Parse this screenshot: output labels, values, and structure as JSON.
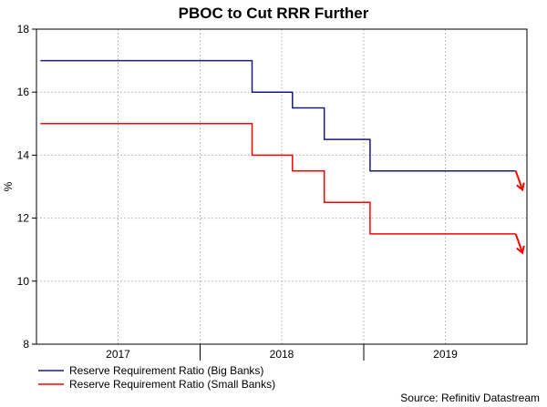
{
  "chart_data": {
    "type": "line",
    "title": "PBOC to Cut RRR Further",
    "ylabel": "%",
    "xlabel": "",
    "ylim": [
      8,
      18
    ],
    "yticks": [
      8,
      10,
      12,
      14,
      16,
      18
    ],
    "x_range": [
      "2016-10-01",
      "2019-09-30"
    ],
    "x_tick_labels": [
      {
        "label": "2017",
        "center": "2017-04-01"
      },
      {
        "label": "2018",
        "center": "2018-04-01"
      },
      {
        "label": "2019",
        "center": "2019-04-01"
      }
    ],
    "x_gridlines": [
      "2017-04-01",
      "2017-10-01",
      "2018-04-01",
      "2018-10-01",
      "2019-04-01"
    ],
    "x_year_boundaries": [
      "2017-10-01",
      "2018-10-01"
    ],
    "grid": true,
    "legend_position": "bottom-left",
    "series": [
      {
        "name": "Reserve Requirement Ratio (Big Banks)",
        "color": "#1a1a80",
        "points": [
          [
            "2016-10-10",
            17.0
          ],
          [
            "2018-01-25",
            17.0
          ],
          [
            "2018-01-25",
            16.0
          ],
          [
            "2018-04-25",
            16.0
          ],
          [
            "2018-04-25",
            15.5
          ],
          [
            "2018-07-05",
            15.5
          ],
          [
            "2018-07-05",
            14.5
          ],
          [
            "2018-10-15",
            14.5
          ],
          [
            "2018-10-15",
            13.5
          ],
          [
            "2019-09-05",
            13.5
          ]
        ],
        "forecast_arrow": {
          "from": [
            "2019-09-05",
            13.5
          ],
          "to": [
            "2019-09-20",
            12.9
          ]
        }
      },
      {
        "name": "Reserve Requirement Ratio (Small Banks)",
        "color": "#ff0000",
        "points": [
          [
            "2016-10-10",
            15.0
          ],
          [
            "2018-01-25",
            15.0
          ],
          [
            "2018-01-25",
            14.0
          ],
          [
            "2018-04-25",
            14.0
          ],
          [
            "2018-04-25",
            13.5
          ],
          [
            "2018-07-05",
            13.5
          ],
          [
            "2018-07-05",
            12.5
          ],
          [
            "2018-10-15",
            12.5
          ],
          [
            "2018-10-15",
            11.5
          ],
          [
            "2019-09-05",
            11.5
          ]
        ],
        "forecast_arrow": {
          "from": [
            "2019-09-05",
            11.5
          ],
          "to": [
            "2019-09-20",
            10.9
          ]
        }
      }
    ],
    "source": "Source: Refinitiv Datastream"
  }
}
